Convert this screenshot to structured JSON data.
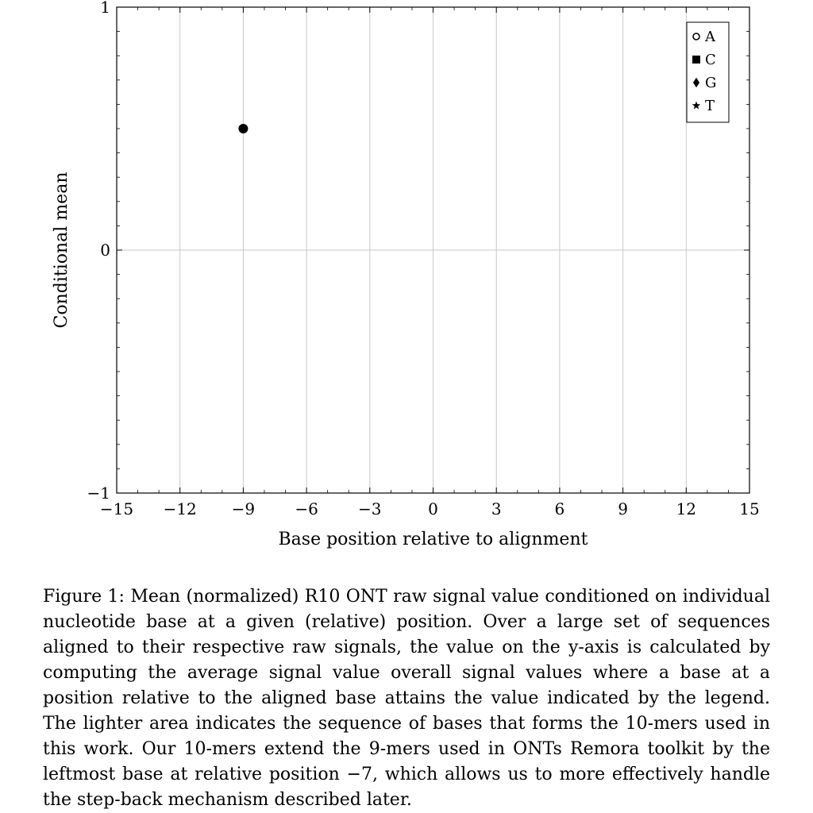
{
  "chart_data": {
    "type": "scatter",
    "xlabel": "Base position relative to alignment",
    "ylabel": "Conditional mean",
    "xlim": [
      -15,
      15
    ],
    "ylim": [
      -1,
      1
    ],
    "x_ticks": [
      -15,
      -12,
      -9,
      -6,
      -3,
      0,
      3,
      6,
      9,
      12,
      15
    ],
    "x_tick_labels": [
      "−15",
      "−12",
      "−9",
      "−6",
      "−3",
      "0",
      "3",
      "6",
      "9",
      "12",
      "15"
    ],
    "y_ticks": [
      -1,
      0,
      1
    ],
    "y_tick_labels": [
      "−1",
      "0",
      "1"
    ],
    "grid": true,
    "legend_position": "top-right",
    "legend": [
      {
        "label": "A",
        "marker": "circle-open"
      },
      {
        "label": "C",
        "marker": "square"
      },
      {
        "label": "G",
        "marker": "diamond"
      },
      {
        "label": "T",
        "marker": "star"
      }
    ],
    "points": [
      {
        "x": -9,
        "y": 0.5,
        "marker": "circle-filled"
      }
    ]
  },
  "caption": "Figure 1: Mean (normalized) R10 ONT raw signal value conditioned on individual nucleotide base at a given (relative) position. Over a large set of sequences aligned to their respective raw signals, the value on the y-axis is calculated by computing the average signal value overall signal values where a base at a position relative to the aligned base attains the value indicated by the legend. The lighter area indicates the sequence of bases that forms the 10-mers used in this work. Our 10-mers extend the 9-mers used in ONTs Remora toolkit by the leftmost base at relative position −7, which allows us to more effectively handle the step-back mechanism described later."
}
